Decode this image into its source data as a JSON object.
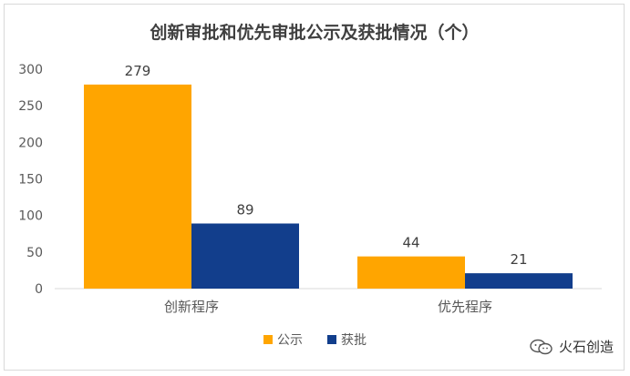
{
  "chart_data": {
    "type": "bar",
    "title": "创新审批和优先审批公示及获批情况（个）",
    "categories": [
      "创新程序",
      "优先程序"
    ],
    "series": [
      {
        "name": "公示",
        "values": [
          279,
          44
        ],
        "color": "#FFA500"
      },
      {
        "name": "获批",
        "values": [
          89,
          21
        ],
        "color": "#123E8C"
      }
    ],
    "ylim": [
      0,
      300
    ],
    "yticks": [
      0,
      50,
      100,
      150,
      200,
      250,
      300
    ],
    "grid": false,
    "legend": "bottom",
    "colors": {
      "axis_text": "#595959",
      "axis_line": "#d9d9d9",
      "title": "#404040",
      "label": "#404040"
    }
  },
  "watermark": {
    "text": "火石创造",
    "icon": "wechat-icon"
  }
}
